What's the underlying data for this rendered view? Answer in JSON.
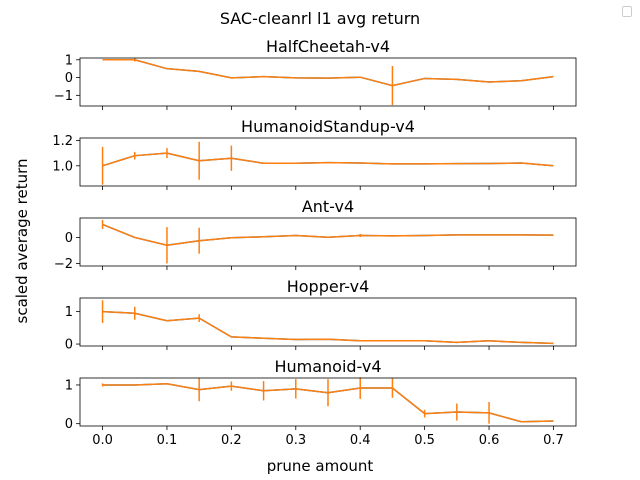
{
  "figure": {
    "suptitle": "SAC-cleanrl l1 avg return",
    "ylabel": "scaled average return",
    "xlabel": "prune amount"
  },
  "colors": {
    "line": "#1f77b4",
    "errorbar": "#ff7f0e",
    "axes": "#000000"
  },
  "chart_data": [
    {
      "type": "line",
      "title": "HalfCheetah-v4",
      "x": [
        0.0,
        0.05,
        0.1,
        0.15,
        0.2,
        0.25,
        0.3,
        0.35,
        0.4,
        0.45,
        0.5,
        0.55,
        0.6,
        0.65,
        0.7
      ],
      "y": [
        1.0,
        1.0,
        0.5,
        0.35,
        -0.02,
        0.05,
        -0.02,
        -0.03,
        0.02,
        -0.45,
        -0.05,
        -0.1,
        -0.25,
        -0.18,
        0.05
      ],
      "yerr": [
        0,
        0.1,
        0,
        0,
        0,
        0,
        0,
        0,
        0,
        1.1,
        0,
        0,
        0,
        0,
        0
      ],
      "ylim": [
        -1.6,
        1.1
      ],
      "yticks": [
        1,
        0,
        -1
      ],
      "yticklabels": [
        "1",
        "0",
        "−1"
      ]
    },
    {
      "type": "line",
      "title": "HumanoidStandup-v4",
      "x": [
        0.0,
        0.05,
        0.1,
        0.15,
        0.2,
        0.25,
        0.3,
        0.35,
        0.4,
        0.45,
        0.5,
        0.55,
        0.6,
        0.65,
        0.7
      ],
      "y": [
        1.0,
        1.08,
        1.1,
        1.04,
        1.06,
        1.02,
        1.02,
        1.025,
        1.022,
        1.015,
        1.015,
        1.017,
        1.018,
        1.022,
        1.0
      ],
      "yerr": [
        0.15,
        0.03,
        0.04,
        0.15,
        0.1,
        0,
        0,
        0,
        0,
        0,
        0,
        0,
        0,
        0,
        0
      ],
      "ylim": [
        0.84,
        1.22
      ],
      "yticks": [
        1.2,
        1.0
      ],
      "yticklabels": [
        "1.2",
        "1.0"
      ]
    },
    {
      "type": "line",
      "title": "Ant-v4",
      "x": [
        0.0,
        0.05,
        0.1,
        0.15,
        0.2,
        0.25,
        0.3,
        0.35,
        0.4,
        0.45,
        0.5,
        0.55,
        0.6,
        0.65,
        0.7
      ],
      "y": [
        1.0,
        0.0,
        -0.6,
        -0.25,
        -0.02,
        0.05,
        0.15,
        0.02,
        0.15,
        0.12,
        0.15,
        0.2,
        0.2,
        0.2,
        0.18
      ],
      "yerr": [
        0.35,
        0,
        1.4,
        1.0,
        0,
        0,
        0,
        0,
        0.12,
        0,
        0,
        0,
        0,
        0,
        0
      ],
      "ylim": [
        -2.2,
        1.5
      ],
      "yticks": [
        0,
        -2
      ],
      "yticklabels": [
        "0",
        "−2"
      ]
    },
    {
      "type": "line",
      "title": "Hopper-v4",
      "x": [
        0.0,
        0.05,
        0.1,
        0.15,
        0.2,
        0.25,
        0.3,
        0.35,
        0.4,
        0.45,
        0.5,
        0.55,
        0.6,
        0.65,
        0.7
      ],
      "y": [
        1.0,
        0.95,
        0.72,
        0.8,
        0.22,
        0.18,
        0.14,
        0.15,
        0.1,
        0.1,
        0.1,
        0.05,
        0.1,
        0.05,
        0.02
      ],
      "yerr": [
        0.35,
        0.2,
        0,
        0.12,
        0,
        0,
        0,
        0,
        0,
        0,
        0,
        0,
        0,
        0,
        0
      ],
      "ylim": [
        -0.06,
        1.42
      ],
      "yticks": [
        1,
        0
      ],
      "yticklabels": [
        "1",
        "0"
      ]
    },
    {
      "type": "line",
      "title": "Humanoid-v4",
      "x": [
        0.0,
        0.05,
        0.1,
        0.15,
        0.2,
        0.25,
        0.3,
        0.35,
        0.4,
        0.45,
        0.5,
        0.55,
        0.6,
        0.65,
        0.7
      ],
      "y": [
        1.0,
        1.0,
        1.03,
        0.88,
        0.97,
        0.85,
        0.9,
        0.8,
        0.92,
        0.92,
        0.26,
        0.3,
        0.28,
        0.05,
        0.07
      ],
      "yerr": [
        0.04,
        0,
        0,
        0.3,
        0.12,
        0.25,
        0.25,
        0.35,
        0.28,
        0.25,
        0.1,
        0.22,
        0.28,
        0,
        0
      ],
      "ylim": [
        -0.06,
        1.18
      ],
      "yticks": [
        1,
        0
      ],
      "yticklabels": [
        "1",
        "0"
      ]
    }
  ],
  "xticks": [
    0.0,
    0.1,
    0.2,
    0.3,
    0.4,
    0.5,
    0.6,
    0.7
  ],
  "xticklabels": [
    "0.0",
    "0.1",
    "0.2",
    "0.3",
    "0.4",
    "0.5",
    "0.6",
    "0.7"
  ],
  "xlim": [
    -0.035,
    0.735
  ]
}
